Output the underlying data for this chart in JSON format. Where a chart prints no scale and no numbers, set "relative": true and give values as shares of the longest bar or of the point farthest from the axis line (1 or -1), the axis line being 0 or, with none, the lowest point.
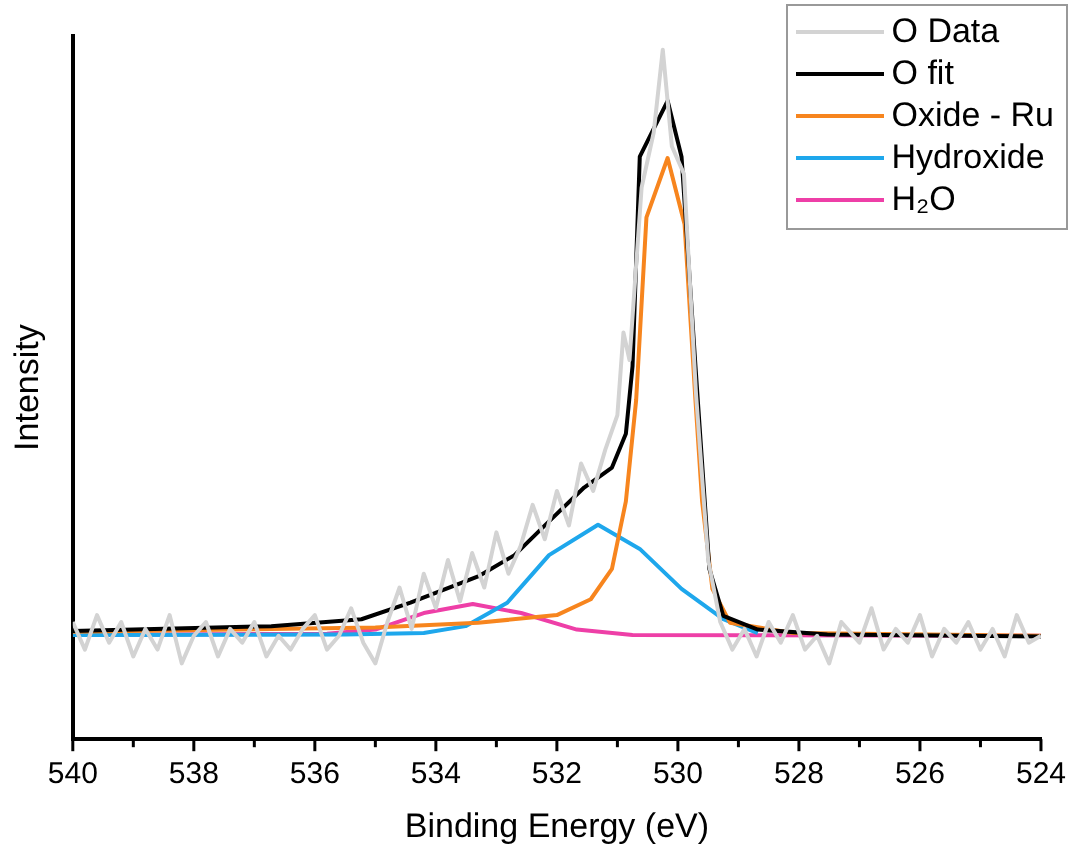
{
  "chart_data": {
    "type": "line",
    "xlabel": "Binding Energy (eV)",
    "ylabel": "Intensity",
    "relative": true,
    "legend": "top right",
    "grid": false,
    "marker": "none",
    "line_style": "solid",
    "xlim": [
      540,
      524
    ],
    "xticks": [
      540,
      {
        "value": 539,
        "label": null
      },
      538,
      {
        "value": 537,
        "label": null
      },
      536,
      {
        "value": 535,
        "label": null
      },
      534,
      {
        "value": 533,
        "label": null
      },
      532,
      {
        "value": 531,
        "label": null
      },
      530,
      {
        "value": 529,
        "label": null
      },
      528,
      {
        "value": 527,
        "label": null
      },
      526,
      {
        "value": 525,
        "label": null
      },
      524
    ],
    "series": [
      {
        "name": "O Data",
        "color": "#d3d3d3",
        "x": [
          540,
          539.8,
          539.6,
          539.4,
          539.2,
          539,
          538.8,
          538.6,
          538.4,
          538.2,
          538,
          537.8,
          537.6,
          537.4,
          537.2,
          537,
          536.8,
          536.6,
          536.4,
          536.2,
          536,
          535.8,
          535.6,
          535.4,
          535.2,
          535,
          534.8,
          534.6,
          534.4,
          534.2,
          534,
          533.8,
          533.6,
          533.4,
          533.2,
          533,
          532.8,
          532.6,
          532.4,
          532.2,
          532,
          531.8,
          531.6,
          531.4,
          531.2,
          531,
          530.9,
          530.8,
          530.6,
          530.4,
          530.25,
          530.1,
          529.9,
          529.7,
          529.5,
          529.3,
          529.1,
          528.9,
          528.7,
          528.5,
          528.3,
          528.1,
          527.9,
          527.7,
          527.5,
          527.3,
          527,
          526.8,
          526.6,
          526.4,
          526.2,
          526,
          525.8,
          525.6,
          525.4,
          525.2,
          525,
          524.8,
          524.6,
          524.4,
          524.2,
          524
        ],
        "values": [
          0.17,
          0.13,
          0.18,
          0.14,
          0.17,
          0.12,
          0.16,
          0.13,
          0.18,
          0.11,
          0.15,
          0.17,
          0.12,
          0.16,
          0.14,
          0.17,
          0.12,
          0.15,
          0.13,
          0.16,
          0.18,
          0.13,
          0.15,
          0.19,
          0.14,
          0.11,
          0.17,
          0.22,
          0.16,
          0.24,
          0.19,
          0.26,
          0.2,
          0.27,
          0.22,
          0.3,
          0.24,
          0.28,
          0.34,
          0.29,
          0.36,
          0.31,
          0.4,
          0.36,
          0.42,
          0.47,
          0.59,
          0.55,
          0.8,
          0.88,
          1,
          0.86,
          0.82,
          0.5,
          0.26,
          0.17,
          0.13,
          0.16,
          0.12,
          0.17,
          0.14,
          0.18,
          0.13,
          0.15,
          0.11,
          0.17,
          0.14,
          0.19,
          0.13,
          0.16,
          0.14,
          0.18,
          0.12,
          0.16,
          0.14,
          0.17,
          0.13,
          0.16,
          0.12,
          0.18,
          0.14,
          0.15
        ]
      },
      {
        "name": "O fit",
        "color": "#000000",
        "x": [
          540,
          536.72,
          535.23,
          534.42,
          533.28,
          532.7,
          532.13,
          531.55,
          531.09,
          530.86,
          530.75,
          530.63,
          530.17,
          529.94,
          529.71,
          529.48,
          529.25,
          528.68,
          527.53,
          524
        ],
        "values": [
          0.157,
          0.164,
          0.174,
          0.198,
          0.237,
          0.267,
          0.316,
          0.365,
          0.394,
          0.443,
          0.541,
          0.845,
          0.926,
          0.845,
          0.541,
          0.247,
          0.179,
          0.159,
          0.152,
          0.149
        ]
      },
      {
        "name": "Oxide - Ru",
        "color": "#f7851e",
        "x": [
          540,
          535,
          533.3,
          532,
          531.44,
          531.09,
          530.86,
          530.69,
          530.52,
          530.17,
          529.89,
          529.71,
          529.6,
          529.43,
          529.14,
          528.1,
          524
        ],
        "values": [
          0.156,
          0.162,
          0.169,
          0.18,
          0.203,
          0.247,
          0.345,
          0.492,
          0.757,
          0.843,
          0.747,
          0.492,
          0.345,
          0.218,
          0.169,
          0.154,
          0.15
        ]
      },
      {
        "name": "Hydroxide",
        "color": "#1ea7ec",
        "x": [
          540,
          535.5,
          534.2,
          533.51,
          532.82,
          532.13,
          531.32,
          530.63,
          529.94,
          529.25,
          528.68
        ],
        "values": [
          0.151,
          0.152,
          0.154,
          0.164,
          0.198,
          0.267,
          0.311,
          0.276,
          0.218,
          0.174,
          0.154
        ]
      },
      {
        "name": "H₂O",
        "color": "#ee3fa7",
        "x": [
          540,
          535.8,
          535,
          534.2,
          533.39,
          532.59,
          531.67,
          530.75,
          524
        ],
        "values": [
          0.151,
          0.153,
          0.159,
          0.183,
          0.196,
          0.183,
          0.159,
          0.151,
          0.15
        ]
      }
    ]
  }
}
